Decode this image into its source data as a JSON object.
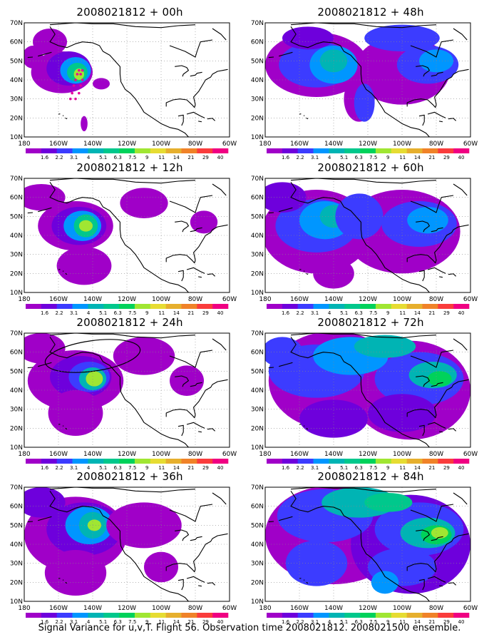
{
  "panels": [
    {
      "title": "2008021812 + 00h",
      "forecast": "00h"
    },
    {
      "title": "2008021812 + 48h",
      "forecast": "48h"
    },
    {
      "title": "2008021812 + 12h",
      "forecast": "12h"
    },
    {
      "title": "2008021812 + 60h",
      "forecast": "60h"
    },
    {
      "title": "2008021812 + 24h",
      "forecast": "24h"
    },
    {
      "title": "2008021812 + 72h",
      "forecast": "72h"
    },
    {
      "title": "2008021812 + 36h",
      "forecast": "36h"
    },
    {
      "title": "2008021812 + 84h",
      "forecast": "84h"
    }
  ],
  "lat_labels": [
    "70N",
    "60N",
    "50N",
    "40N",
    "30N",
    "20N",
    "10N"
  ],
  "lon_labels": [
    "180",
    "160W",
    "140W",
    "120W",
    "100W",
    "80W",
    "60W"
  ],
  "colorbar": {
    "labels": [
      "1.6",
      "2.2",
      "3.1",
      "4",
      "5.1",
      "6.3",
      "7.5",
      "9",
      "11",
      "14",
      "21",
      "29",
      "40"
    ],
    "colors": [
      "#a000c8",
      "#6e00dc",
      "#3c3cff",
      "#0096ff",
      "#00b4b4",
      "#00c88c",
      "#00d25a",
      "#a0e632",
      "#e6dc32",
      "#e6af2d",
      "#f08228",
      "#fa3c3c",
      "#f00082"
    ]
  },
  "footer": "Signal Variance for u,v,T. Flight 56. Observation time 2008021812. 2008021500 ensemble."
}
